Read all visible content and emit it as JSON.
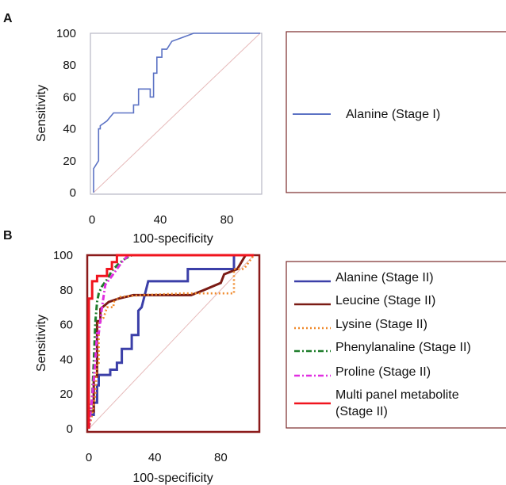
{
  "chart_data": [
    {
      "panel": "A",
      "type": "line",
      "xlabel": "100-specificity",
      "ylabel": "Sensitivity",
      "xlim": [
        0,
        100
      ],
      "ylim": [
        0,
        100
      ],
      "xticks": [
        0,
        40,
        80
      ],
      "yticks": [
        0,
        20,
        40,
        60,
        80,
        100
      ],
      "diagonal": true,
      "series": [
        {
          "name": "Alanine (Stage I)",
          "color": "#5b72c4",
          "dash": "solid",
          "x": [
            0,
            0,
            3,
            3,
            4,
            4,
            8,
            12,
            24,
            24,
            27,
            27,
            34,
            34,
            36,
            36,
            38,
            38,
            41,
            41,
            44,
            47,
            55,
            60,
            64,
            100
          ],
          "y": [
            0,
            15,
            20,
            40,
            40,
            42,
            45,
            50,
            50,
            55,
            55,
            65,
            65,
            60,
            60,
            75,
            75,
            85,
            85,
            90,
            90,
            95,
            98,
            100,
            100,
            100
          ]
        }
      ]
    },
    {
      "panel": "B",
      "type": "line",
      "xlabel": "100-specificity",
      "ylabel": "Sensitivity",
      "xlim": [
        0,
        100
      ],
      "ylim": [
        0,
        100
      ],
      "xticks": [
        0,
        40,
        80
      ],
      "yticks": [
        0,
        20,
        40,
        60,
        80,
        100
      ],
      "diagonal": true,
      "series": [
        {
          "name": "Alanine (Stage II)",
          "color": "#3b3fa8",
          "dash": "solid",
          "x": [
            0,
            0,
            3,
            3,
            5,
            5,
            6,
            6,
            13,
            13,
            17,
            17,
            20,
            20,
            26,
            26,
            30,
            30,
            32,
            36,
            45,
            60,
            60,
            88,
            88,
            100
          ],
          "y": [
            0,
            8,
            8,
            15,
            15,
            25,
            25,
            31,
            31,
            34,
            34,
            38,
            38,
            46,
            46,
            54,
            54,
            68,
            70,
            85,
            85,
            85,
            92,
            92,
            100,
            100
          ]
        },
        {
          "name": "Leucine (Stage II)",
          "color": "#7a1b14",
          "dash": "solid",
          "x": [
            0,
            0,
            3,
            3,
            5,
            5,
            7,
            7,
            12,
            18,
            27,
            40,
            62,
            70,
            80,
            82,
            90,
            95,
            100
          ],
          "y": [
            0,
            10,
            10,
            30,
            30,
            62,
            62,
            69,
            73,
            75,
            77,
            77,
            77,
            80,
            84,
            89,
            92,
            100,
            100
          ]
        },
        {
          "name": "Lysine (Stage II)",
          "color": "#f08a2c",
          "dash": "dot",
          "x": [
            0,
            2,
            4,
            5,
            6,
            6,
            9,
            11,
            15,
            15,
            19,
            32,
            57,
            88,
            88,
            94,
            100
          ],
          "y": [
            0,
            8,
            20,
            38,
            38,
            62,
            64,
            70,
            70,
            73,
            76,
            77,
            78,
            78,
            92,
            92,
            100
          ]
        },
        {
          "name": "Phenylanaline (Stage II)",
          "color": "#1e7d2a",
          "dash": "dashdot",
          "x": [
            0,
            2,
            3,
            4,
            5,
            6,
            8,
            11,
            14,
            18,
            22,
            26,
            100
          ],
          "y": [
            0,
            18,
            38,
            62,
            73,
            78,
            82,
            86,
            91,
            95,
            98,
            100,
            100
          ]
        },
        {
          "name": "Proline (Stage II)",
          "color": "#e02fe0",
          "dash": "dashdot",
          "x": [
            0,
            2,
            4,
            5,
            6,
            8,
            10,
            14,
            17,
            20,
            24,
            100
          ],
          "y": [
            0,
            18,
            40,
            55,
            55,
            70,
            83,
            88,
            92,
            96,
            100,
            100
          ]
        },
        {
          "name": "Multi panel metabolite (Stage II)",
          "color": "#f0141e",
          "dash": "solid",
          "x": [
            0,
            0,
            2,
            2,
            5,
            5,
            11,
            11,
            14,
            14,
            17,
            17,
            100
          ],
          "y": [
            0,
            75,
            75,
            85,
            85,
            88,
            88,
            92,
            92,
            96,
            96,
            100,
            100
          ]
        }
      ]
    }
  ],
  "panelA": {
    "label": "A",
    "ylabel": "Sensitivity",
    "xlabel": "100-specificity",
    "legend": [
      "Alanine (Stage I)"
    ]
  },
  "panelB": {
    "label": "B",
    "ylabel": "Sensitivity",
    "xlabel": "100-specificity",
    "legend": [
      [
        "Alanine (Stage II)"
      ],
      [
        "Leucine (Stage II)"
      ],
      [
        "Lysine (Stage II)"
      ],
      [
        "Phenylanaline (Stage II)"
      ],
      [
        "Proline (Stage II)"
      ],
      [
        "Multi panel metabolite",
        "(Stage II)"
      ]
    ]
  },
  "colors": {
    "frameA": "#b7b7c4",
    "frameB": "#8b1a1a",
    "legendBorder": "#7a2a2a",
    "diagonal": "#e6b9b9"
  }
}
